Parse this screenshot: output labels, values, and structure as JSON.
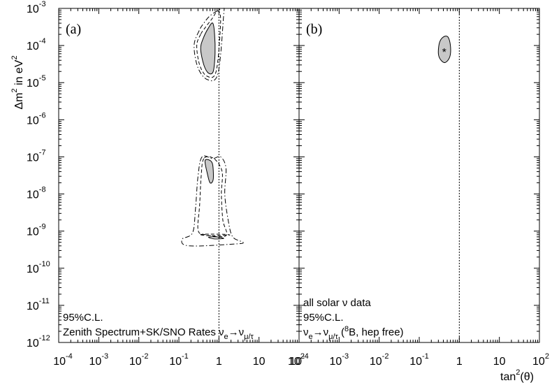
{
  "chart_data": {
    "type": "contour",
    "ylabel": {
      "prefix": "Δm",
      "sup": "2",
      "suffix": " in eV",
      "sup2": "2"
    },
    "xlabel": {
      "text": "tan",
      "sup": "2",
      "suffix": "(θ)"
    },
    "x_scale": "log",
    "y_scale": "log",
    "xlim": [
      0.0001,
      100
    ],
    "ylim": [
      1e-12,
      0.001
    ],
    "y_ticks": [
      {
        "value": 1e-12,
        "base": "10",
        "exp": "-12"
      },
      {
        "value": 1e-11,
        "base": "10",
        "exp": "-11"
      },
      {
        "value": 1e-10,
        "base": "10",
        "exp": "-10"
      },
      {
        "value": 1e-09,
        "base": "10",
        "exp": "-9"
      },
      {
        "value": 1e-08,
        "base": "10",
        "exp": "-8"
      },
      {
        "value": 1e-07,
        "base": "10",
        "exp": "-7"
      },
      {
        "value": 1e-06,
        "base": "10",
        "exp": "-6"
      },
      {
        "value": 1e-05,
        "base": "10",
        "exp": "-5"
      },
      {
        "value": 0.0001,
        "base": "10",
        "exp": "-4"
      },
      {
        "value": 0.001,
        "base": "10",
        "exp": "-3"
      }
    ],
    "panels": [
      {
        "tag": "(a)",
        "x_ticks": [
          {
            "value": 0.0001,
            "base": "10",
            "exp": "-4"
          },
          {
            "value": 0.001,
            "base": "10",
            "exp": "-3"
          },
          {
            "value": 0.01,
            "base": "10",
            "exp": "-2"
          },
          {
            "value": 0.1,
            "base": "10",
            "exp": "-1"
          },
          {
            "value": 1,
            "base": "1",
            "exp": ""
          },
          {
            "value": 10,
            "base": "10",
            "exp": ""
          }
        ],
        "notes": [
          {
            "parts": [
              {
                "t": "95%C.L."
              }
            ]
          },
          {
            "parts": [
              {
                "t": "Zenith Spectrum+SK/SNO Rates ν"
              },
              {
                "t": "e",
                "sub": true
              },
              {
                "t": "→ν"
              },
              {
                "t": "μ/τ",
                "sub": true
              }
            ]
          }
        ],
        "filled_regions": [
          {
            "name": "lma",
            "points": [
              [
                0.4,
                0.00015
              ],
              [
                0.35,
                8e-05
              ],
              [
                0.42,
                3e-05
              ],
              [
                0.55,
                1.8e-05
              ],
              [
                0.72,
                2e-05
              ],
              [
                0.8,
                6e-05
              ],
              [
                0.78,
                0.0002
              ],
              [
                0.7,
                0.0004
              ],
              [
                0.55,
                0.0003
              ]
            ]
          },
          {
            "name": "low",
            "points": [
              [
                0.45,
                8e-08
              ],
              [
                0.5,
                4e-08
              ],
              [
                0.6,
                2e-08
              ],
              [
                0.72,
                2.5e-08
              ],
              [
                0.7,
                6e-08
              ],
              [
                0.6,
                8e-08
              ]
            ]
          }
        ],
        "outline_regions": [
          {
            "name": "lma-dash",
            "style": "dash",
            "points": [
              [
                0.35,
                0.0002
              ],
              [
                0.28,
                0.0001
              ],
              [
                0.33,
                3e-05
              ],
              [
                0.5,
                1.5e-05
              ],
              [
                0.85,
                2e-05
              ],
              [
                1.1,
                0.0004
              ],
              [
                0.95,
                0.00085
              ],
              [
                0.65,
                0.0005
              ],
              [
                0.45,
                0.0003
              ]
            ]
          },
          {
            "name": "lma-dashdot",
            "style": "dashdot",
            "points": [
              [
                0.32,
                0.00025
              ],
              [
                0.24,
                0.0001
              ],
              [
                0.3,
                2.5e-05
              ],
              [
                0.52,
                1.2e-05
              ],
              [
                0.95,
                1.8e-05
              ],
              [
                1.3,
                0.0006
              ],
              [
                1.25,
                0.001
              ],
              [
                0.62,
                0.00065
              ],
              [
                0.42,
                0.0004
              ]
            ]
          },
          {
            "name": "low-dashdot",
            "style": "dashdot",
            "points": [
              [
                0.38,
                1e-07
              ],
              [
                0.3,
                3e-08
              ],
              [
                0.26,
                4e-09
              ],
              [
                0.22,
                9e-10
              ],
              [
                0.12,
                6e-10
              ],
              [
                0.18,
                4e-10
              ],
              [
                2.5,
                4.5e-10
              ],
              [
                4,
                5e-10
              ],
              [
                2.2,
                7e-10
              ],
              [
                1.7,
                2e-09
              ],
              [
                1.4,
                1e-08
              ],
              [
                1.5,
                5e-08
              ],
              [
                1.1,
                1e-07
              ],
              [
                0.7,
                9e-08
              ]
            ]
          },
          {
            "name": "low-dash",
            "style": "dash",
            "points": [
              [
                0.42,
                9e-08
              ],
              [
                0.36,
                3e-08
              ],
              [
                0.33,
                5e-09
              ],
              [
                0.3,
                1.1e-09
              ],
              [
                0.45,
                8e-10
              ],
              [
                1.5,
                7.5e-10
              ],
              [
                1.25,
                2e-09
              ],
              [
                1.15,
                1e-08
              ],
              [
                1.2,
                4e-08
              ],
              [
                0.75,
                9e-08
              ]
            ]
          },
          {
            "name": "vac-solid",
            "style": "solid",
            "points": [
              [
                0.55,
                6.8e-10
              ],
              [
                0.75,
                6.2e-10
              ],
              [
                1.3,
                6.3e-10
              ],
              [
                1.05,
                6.8e-10
              ],
              [
                0.7,
                7e-10
              ]
            ]
          },
          {
            "name": "vac-dash",
            "style": "dash",
            "points": [
              [
                0.35,
                8e-10
              ],
              [
                0.6,
                7.5e-10
              ],
              [
                1.8,
                7.8e-10
              ],
              [
                1.3,
                8.2e-10
              ],
              [
                0.5,
                8.3e-10
              ]
            ]
          }
        ]
      },
      {
        "tag": "(b)",
        "x_ticks": [
          {
            "value": 0.0001,
            "base": "10",
            "exp": "-4"
          },
          {
            "value": 0.001,
            "base": "10",
            "exp": "-3"
          },
          {
            "value": 0.01,
            "base": "10",
            "exp": "-2"
          },
          {
            "value": 0.1,
            "base": "10",
            "exp": "-1"
          },
          {
            "value": 1,
            "base": "1",
            "exp": ""
          },
          {
            "value": 10,
            "base": "10",
            "exp": ""
          },
          {
            "value": 100,
            "base": "10",
            "exp": "2"
          }
        ],
        "shared_tick": {
          "value": 100,
          "base": "10",
          "exp": "2"
        },
        "notes": [
          {
            "parts": [
              {
                "t": "all solar ν data"
              }
            ]
          },
          {
            "parts": [
              {
                "t": "95%C.L."
              }
            ]
          },
          {
            "parts": [
              {
                "t": "ν"
              },
              {
                "t": "e",
                "sub": true
              },
              {
                "t": "→ν"
              },
              {
                "t": "μ/τ",
                "sub": true
              },
              {
                "t": "  ("
              },
              {
                "t": "8",
                "sup": true
              },
              {
                "t": "B, hep free)"
              }
            ]
          }
        ],
        "filled_regions": [
          {
            "name": "lma-global",
            "points": [
              [
                0.32,
                0.00012
              ],
              [
                0.3,
                6e-05
              ],
              [
                0.35,
                4e-05
              ],
              [
                0.45,
                3.5e-05
              ],
              [
                0.58,
                5e-05
              ],
              [
                0.6,
                0.0001
              ],
              [
                0.52,
                0.00017
              ],
              [
                0.4,
                0.00017
              ]
            ]
          }
        ],
        "best_fit": {
          "x": 0.42,
          "y": 6.5e-05,
          "marker": "*"
        },
        "outline_regions": []
      }
    ],
    "reference_line": {
      "x": 1,
      "style": "dotted"
    }
  }
}
